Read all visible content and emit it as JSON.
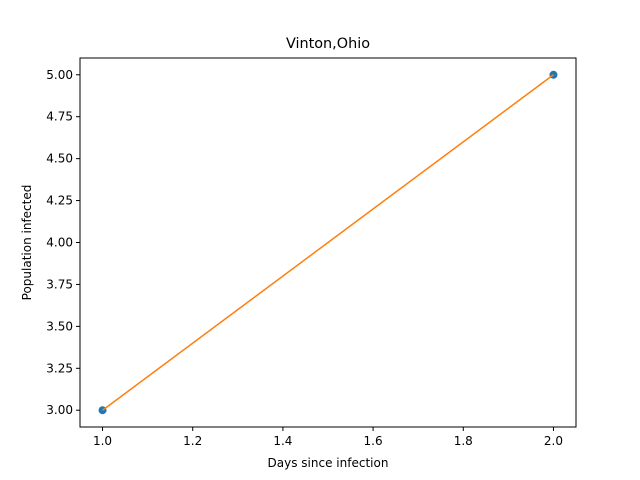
{
  "chart_data": {
    "type": "scatter",
    "title": "Vinton,Ohio",
    "xlabel": "Days since infection",
    "ylabel": "Population infected",
    "xlim": [
      0.95,
      2.05
    ],
    "ylim": [
      2.9,
      5.1
    ],
    "x_ticks": [
      1.0,
      1.2,
      1.4,
      1.6,
      1.8,
      2.0
    ],
    "y_ticks": [
      3.0,
      3.25,
      3.5,
      3.75,
      4.0,
      4.25,
      4.5,
      4.75,
      5.0
    ],
    "x_tick_labels": [
      "1.0",
      "1.2",
      "1.4",
      "1.6",
      "1.8",
      "2.0"
    ],
    "y_tick_labels": [
      "3.00",
      "3.25",
      "3.50",
      "3.75",
      "4.00",
      "4.25",
      "4.50",
      "4.75",
      "5.00"
    ],
    "grid": false,
    "series": [
      {
        "kind": "scatter",
        "color": "#1f77b4",
        "x": [
          1.0,
          2.0
        ],
        "y": [
          3.0,
          5.0
        ]
      },
      {
        "kind": "line",
        "color": "#ff7f0e",
        "x": [
          1.0,
          2.0
        ],
        "y": [
          3.0,
          5.0
        ]
      }
    ]
  }
}
